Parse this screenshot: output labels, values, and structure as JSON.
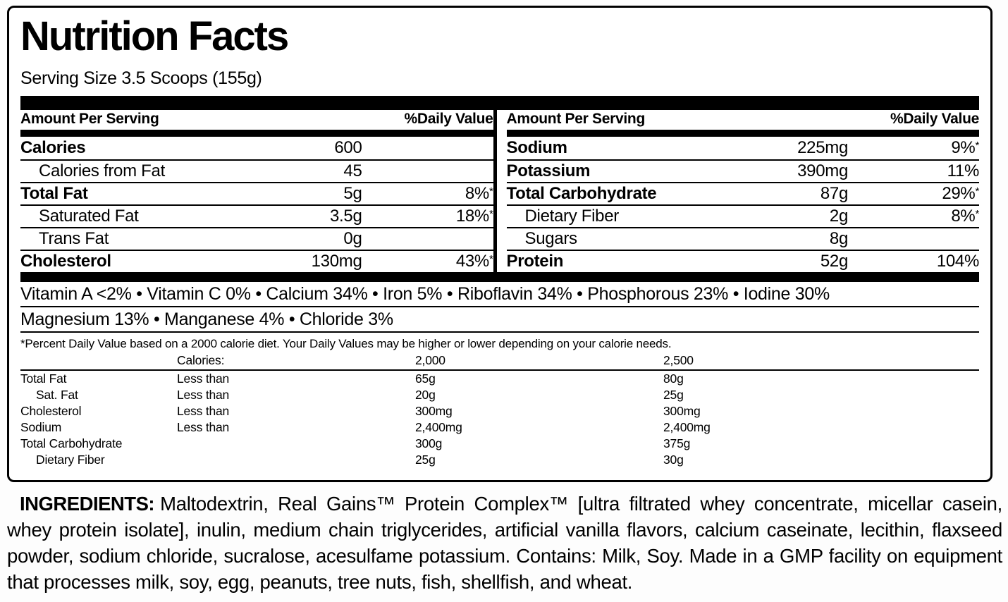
{
  "title": "Nutrition Facts",
  "serving_size": "Serving Size 3.5 Scoops (155g)",
  "panel_left": {
    "header_amount": "Amount Per Serving",
    "header_dv": "%Daily Value",
    "rows": [
      {
        "name": "Calories",
        "amount": "600",
        "dv": "",
        "star": ""
      },
      {
        "name": "Calories from Fat",
        "amount": "45",
        "dv": "",
        "star": ""
      },
      {
        "name": "Total Fat",
        "amount": "5g",
        "dv": "8%",
        "star": "*"
      },
      {
        "name": "Saturated Fat",
        "amount": "3.5g",
        "dv": "18%",
        "star": "*"
      },
      {
        "name": "Trans Fat",
        "amount": "0g",
        "dv": "",
        "star": ""
      },
      {
        "name": "Cholesterol",
        "amount": "130mg",
        "dv": "43%",
        "star": "*"
      }
    ]
  },
  "panel_right": {
    "header_amount": "Amount Per Serving",
    "header_dv": "%Daily Value",
    "rows": [
      {
        "name": "Sodium",
        "amount": "225mg",
        "dv": "9%",
        "star": "*"
      },
      {
        "name": "Potassium",
        "amount": "390mg",
        "dv": "11%",
        "star": ""
      },
      {
        "name": "Total Carbohydrate",
        "amount": "87g",
        "dv": "29%",
        "star": "*"
      },
      {
        "name": "Dietary Fiber",
        "amount": "2g",
        "dv": "8%",
        "star": "*"
      },
      {
        "name": "Sugars",
        "amount": "8g",
        "dv": "",
        "star": ""
      },
      {
        "name": "Protein",
        "amount": "52g",
        "dv": "104%",
        "star": ""
      }
    ]
  },
  "micronutrients": {
    "line1": "Vitamin A <2% • Vitamin C 0% • Calcium 34% • Iron 5% • Riboflavin 34% • Phosphorous 23% • Iodine 30%",
    "line2": "Magnesium 13% • Manganese 4% • Chloride 3%"
  },
  "footnote": "*Percent Daily Value based on a 2000 calorie diet. Your Daily Values may be higher or lower depending on your calorie needs.",
  "dv_table": {
    "header": {
      "calories_label": "Calories:",
      "col_2000": "2,000",
      "col_2500": "2,500"
    },
    "rows": [
      {
        "name": "Total Fat",
        "qualifier": "Less than",
        "v2000": "65g",
        "v2500": "80g"
      },
      {
        "name": "Sat. Fat",
        "qualifier": "Less than",
        "v2000": "20g",
        "v2500": "25g"
      },
      {
        "name": "Cholesterol",
        "qualifier": "Less than",
        "v2000": "300mg",
        "v2500": "300mg"
      },
      {
        "name": "Sodium",
        "qualifier": "Less than",
        "v2000": "2,400mg",
        "v2500": "2,400mg"
      },
      {
        "name": "Total Carbohydrate",
        "qualifier": "",
        "v2000": "300g",
        "v2500": "375g"
      },
      {
        "name": "Dietary Fiber",
        "qualifier": "",
        "v2000": "25g",
        "v2500": "30g"
      }
    ]
  },
  "ingredients": {
    "label": "INGREDIENTS:",
    "text": "Maltodextrin, Real Gains™ Protein Complex™ [ultra filtrated whey concentrate, micellar casein, whey protein isolate], inulin, medium chain triglycerides, artificial vanilla flavors, calcium caseinate, lecithin, flaxseed powder, sodium chloride, sucralose, acesulfame potassium. Contains: Milk, Soy. Made in a GMP facility on equipment that processes milk, soy, egg, peanuts, tree nuts, fish, shellfish, and wheat."
  }
}
